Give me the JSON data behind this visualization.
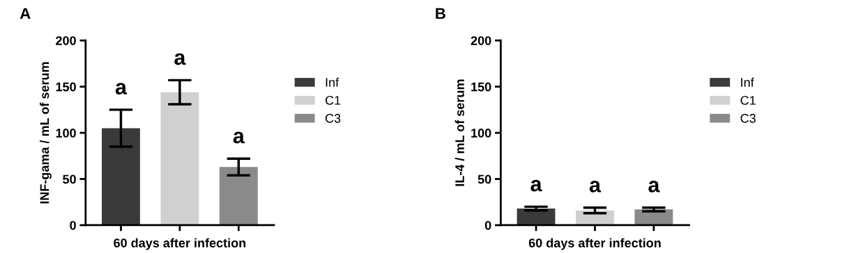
{
  "chart_data": [
    {
      "type": "bar",
      "title": "A",
      "ylabel": "INF-gama / mL of serum",
      "xlabel": "60 days after infection",
      "categories": [
        null,
        null,
        null
      ],
      "series": [
        {
          "name": "Inf",
          "color": "#3a3a3a",
          "values": [
            105,
            null,
            null
          ],
          "errors": [
            20,
            null,
            null
          ]
        },
        {
          "name": "C1",
          "color": "#d0d0d0",
          "values": [
            null,
            144,
            null
          ],
          "errors": [
            null,
            13,
            null
          ]
        },
        {
          "name": "C3",
          "color": "#8a8a8a",
          "values": [
            null,
            null,
            63
          ],
          "errors": [
            null,
            null,
            9
          ]
        }
      ],
      "ylim": [
        0,
        200
      ],
      "yticks": [
        0,
        50,
        100,
        150,
        200
      ],
      "annotations": [
        "a",
        "a",
        "a"
      ],
      "legend": "right",
      "grid": false
    },
    {
      "type": "bar",
      "title": "B",
      "ylabel": "IL-4 / mL of serum",
      "xlabel": "60 days after infection",
      "categories": [
        null,
        null,
        null
      ],
      "series": [
        {
          "name": "Inf",
          "color": "#3a3a3a",
          "values": [
            18,
            null,
            null
          ],
          "errors": [
            2,
            null,
            null
          ]
        },
        {
          "name": "C1",
          "color": "#d0d0d0",
          "values": [
            null,
            16,
            null
          ],
          "errors": [
            null,
            3,
            null
          ]
        },
        {
          "name": "C3",
          "color": "#8a8a8a",
          "values": [
            null,
            null,
            17
          ],
          "errors": [
            null,
            null,
            2
          ]
        }
      ],
      "ylim": [
        0,
        200
      ],
      "yticks": [
        0,
        50,
        100,
        150,
        200
      ],
      "annotations": [
        "a",
        "a",
        "a"
      ],
      "legend": "right",
      "grid": false
    }
  ]
}
